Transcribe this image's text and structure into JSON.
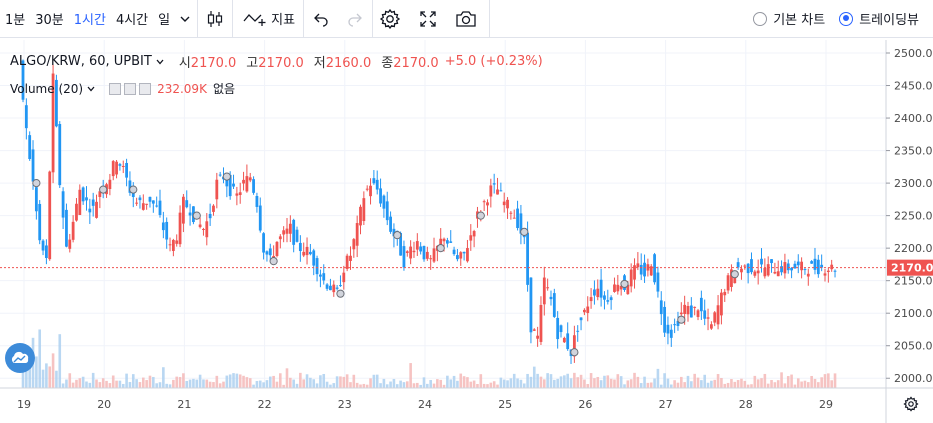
{
  "toolbar": {
    "timeframes": [
      "1분",
      "30분",
      "1시간",
      "4시간",
      "일"
    ],
    "active_timeframe_index": 2,
    "indicators_label": "지표",
    "chart_type_basic": "기본 차트",
    "chart_type_tradingview": "트레이딩뷰",
    "selected_chart_type": "트레이딩뷰"
  },
  "legend": {
    "symbol": "ALGO/KRW, 60, UPBIT",
    "open_label": "시",
    "open": "2170.0",
    "high_label": "고",
    "high": "2170.0",
    "low_label": "저",
    "low": "2160.0",
    "close_label": "종",
    "close": "2170.0",
    "change": "+5.0 (+0.23%)"
  },
  "volume_legend": {
    "label": "Volume (20)",
    "value": "232.09K",
    "extra": "없음"
  },
  "price_axis": {
    "ticks": [
      "2500.0",
      "2450.0",
      "2400.0",
      "2350.0",
      "2300.0",
      "2250.0",
      "2200.0",
      "2150.0",
      "2100.0",
      "2050.0",
      "2000.0"
    ],
    "current_price": "2170.0"
  },
  "time_axis": {
    "ticks": [
      "19",
      "20",
      "21",
      "22",
      "23",
      "24",
      "25",
      "26",
      "27",
      "28",
      "29"
    ]
  },
  "colors": {
    "up": "#ef5350",
    "down": "#2196f3",
    "grid": "#f0f3fa",
    "axis_text": "#4a4a4a",
    "price_label_bg": "#ef5350",
    "active": "#2962ff"
  },
  "chart_data": {
    "type": "candlestick",
    "symbol": "ALGO/KRW",
    "interval": "60",
    "ylim": [
      1985,
      2520
    ],
    "days": [
      "19",
      "20",
      "21",
      "22",
      "23",
      "24",
      "25",
      "26",
      "27",
      "28",
      "29"
    ],
    "candles_per_day": 24,
    "close_path": [
      [
        0,
        2480
      ],
      [
        2,
        2380
      ],
      [
        4,
        2300
      ],
      [
        6,
        2210
      ],
      [
        8,
        2180
      ],
      [
        10,
        2460
      ],
      [
        12,
        2300
      ],
      [
        14,
        2200
      ],
      [
        16,
        2240
      ],
      [
        18,
        2290
      ],
      [
        20,
        2270
      ],
      [
        22,
        2260
      ],
      [
        24,
        2290
      ],
      [
        27,
        2310
      ],
      [
        29,
        2340
      ],
      [
        31,
        2320
      ],
      [
        33,
        2290
      ],
      [
        35,
        2270
      ],
      [
        37,
        2270
      ],
      [
        39,
        2275
      ],
      [
        41,
        2260
      ],
      [
        43,
        2230
      ],
      [
        45,
        2200
      ],
      [
        47,
        2220
      ],
      [
        49,
        2270
      ],
      [
        51,
        2260
      ],
      [
        53,
        2240
      ],
      [
        55,
        2230
      ],
      [
        57,
        2250
      ],
      [
        59,
        2300
      ],
      [
        61,
        2310
      ],
      [
        63,
        2290
      ],
      [
        65,
        2280
      ],
      [
        67,
        2300
      ],
      [
        69,
        2310
      ],
      [
        71,
        2270
      ],
      [
        73,
        2200
      ],
      [
        75,
        2180
      ],
      [
        77,
        2210
      ],
      [
        79,
        2220
      ],
      [
        81,
        2230
      ],
      [
        83,
        2200
      ],
      [
        85,
        2200
      ],
      [
        87,
        2190
      ],
      [
        89,
        2170
      ],
      [
        91,
        2150
      ],
      [
        93,
        2140
      ],
      [
        95,
        2130
      ],
      [
        97,
        2170
      ],
      [
        99,
        2190
      ],
      [
        101,
        2230
      ],
      [
        103,
        2280
      ],
      [
        105,
        2300
      ],
      [
        107,
        2290
      ],
      [
        109,
        2260
      ],
      [
        111,
        2230
      ],
      [
        113,
        2210
      ],
      [
        115,
        2180
      ],
      [
        117,
        2200
      ],
      [
        119,
        2210
      ],
      [
        121,
        2190
      ],
      [
        123,
        2180
      ],
      [
        125,
        2200
      ],
      [
        127,
        2220
      ],
      [
        129,
        2200
      ],
      [
        131,
        2180
      ],
      [
        133,
        2190
      ],
      [
        135,
        2220
      ],
      [
        137,
        2250
      ],
      [
        139,
        2270
      ],
      [
        141,
        2290
      ],
      [
        143,
        2290
      ],
      [
        145,
        2270
      ],
      [
        147,
        2260
      ],
      [
        149,
        2240
      ],
      [
        151,
        2210
      ],
      [
        153,
        2080
      ],
      [
        155,
        2060
      ],
      [
        157,
        2150
      ],
      [
        159,
        2120
      ],
      [
        161,
        2070
      ],
      [
        163,
        2060
      ],
      [
        165,
        2040
      ],
      [
        167,
        2080
      ],
      [
        169,
        2100
      ],
      [
        171,
        2130
      ],
      [
        173,
        2140
      ],
      [
        175,
        2120
      ],
      [
        177,
        2130
      ],
      [
        179,
        2150
      ],
      [
        181,
        2140
      ],
      [
        183,
        2160
      ],
      [
        185,
        2170
      ],
      [
        187,
        2160
      ],
      [
        189,
        2180
      ],
      [
        191,
        2130
      ],
      [
        193,
        2080
      ],
      [
        195,
        2070
      ],
      [
        197,
        2090
      ],
      [
        199,
        2110
      ],
      [
        201,
        2100
      ],
      [
        203,
        2110
      ],
      [
        205,
        2090
      ],
      [
        207,
        2080
      ],
      [
        209,
        2110
      ],
      [
        211,
        2140
      ],
      [
        213,
        2160
      ],
      [
        215,
        2170
      ]
    ],
    "volume_max": 18,
    "last_price": 2170.0
  }
}
